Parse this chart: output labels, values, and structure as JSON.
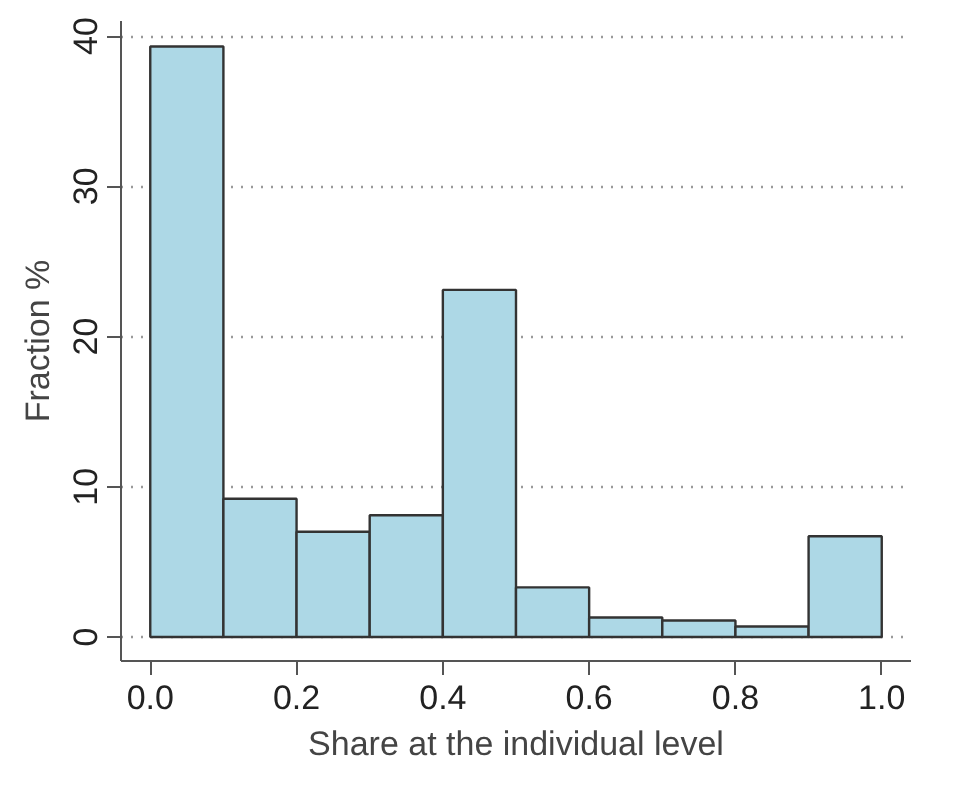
{
  "chart_data": {
    "type": "histogram",
    "xlabel": "Share at the individual level",
    "ylabel": "Fraction %",
    "bins": [
      0.0,
      0.1,
      0.2,
      0.3,
      0.4,
      0.5,
      0.6,
      0.7,
      0.8,
      0.9,
      1.0
    ],
    "values": [
      39.3,
      9.2,
      7.0,
      8.1,
      23.1,
      3.3,
      1.3,
      1.1,
      0.7,
      6.7
    ],
    "color": "#add8e6",
    "xlim": [
      -0.04,
      1.04
    ],
    "ylim": [
      -1.6,
      41
    ],
    "xticks": [
      {
        "value": 0,
        "label": "0.0"
      },
      0.2,
      0.4,
      0.6,
      0.8,
      {
        "value": 1,
        "label": "1.0"
      }
    ],
    "yticks": [
      0,
      10,
      20,
      30,
      40
    ],
    "grid": "y"
  }
}
